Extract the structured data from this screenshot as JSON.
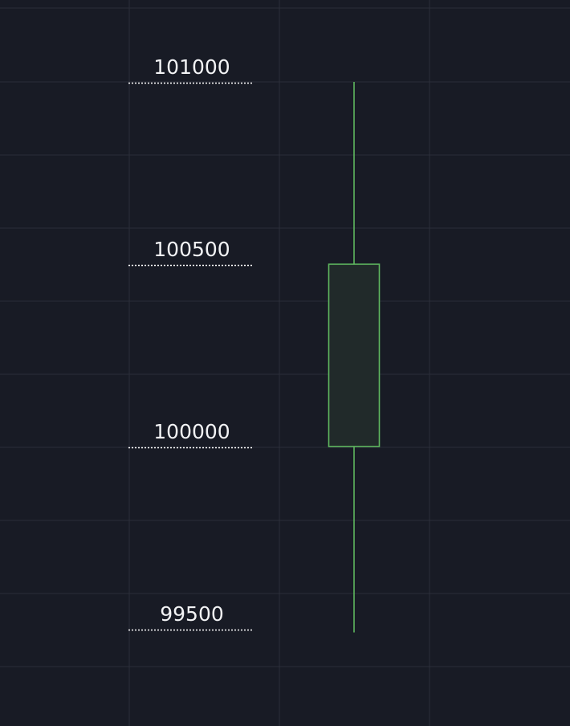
{
  "chart_data": {
    "type": "candlestick",
    "colors": {
      "background": "#181b25",
      "grid": "#2a2e39",
      "candle_up": "#5fb85f",
      "candle_body_fill": "#212a2a",
      "level_line": "#ffffff",
      "label": "#f2f3f5"
    },
    "price_levels": [
      {
        "value": 101000,
        "label": "101000"
      },
      {
        "value": 100500,
        "label": "100500"
      },
      {
        "value": 100000,
        "label": "100000"
      },
      {
        "value": 99500,
        "label": "99500"
      }
    ],
    "candles": [
      {
        "open": 100000,
        "high": 101000,
        "close": 100500,
        "low": 99490
      }
    ],
    "grid": true
  }
}
